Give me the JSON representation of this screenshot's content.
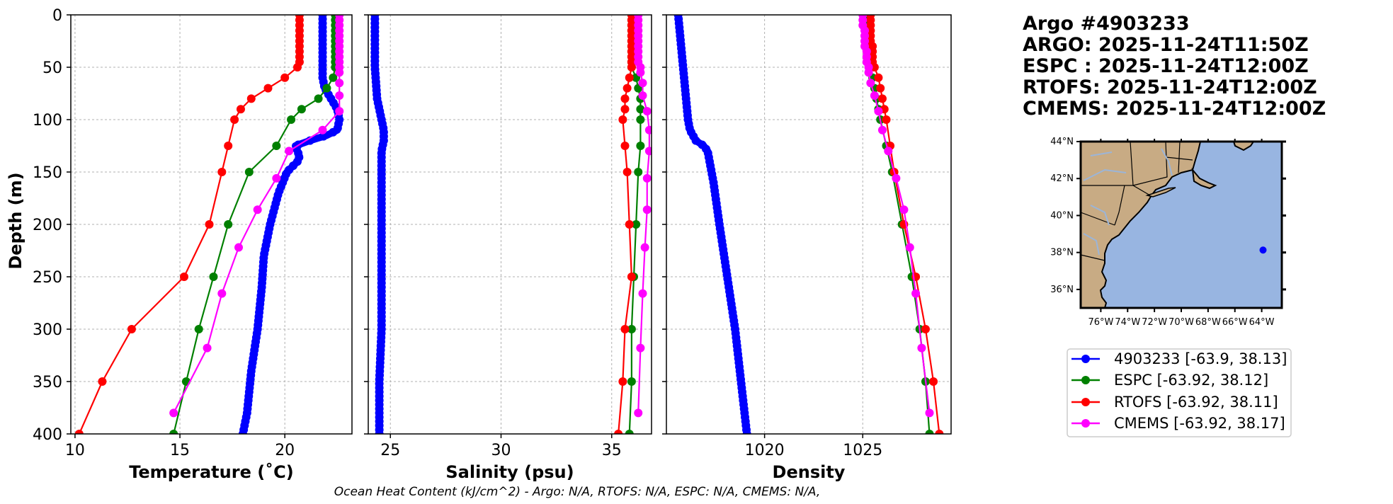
{
  "title_block": {
    "lines": [
      "Argo #4903233",
      "ARGO: 2025-11-24T11:50Z",
      "ESPC : 2025-11-24T12:00Z",
      "RTOFS: 2025-11-24T12:00Z",
      "CMEMS: 2025-11-24T12:00Z"
    ]
  },
  "footer": "Ocean Heat Content (kJ/cm^2) - Argo: N/A,  RTOFS: N/A,  ESPC: N/A,  CMEMS: N/A,",
  "colors": {
    "argo": "#0000ff",
    "espc": "#008000",
    "rtofs": "#ff0000",
    "cmems": "#ff00ff",
    "land": "#c8ab84",
    "ocean": "#98b5e1"
  },
  "legend": [
    {
      "label": "4903233 [-63.9, 38.13]",
      "color": "#0000ff"
    },
    {
      "label": "ESPC [-63.92, 38.12]",
      "color": "#008000"
    },
    {
      "label": "RTOFS [-63.92, 38.11]",
      "color": "#ff0000"
    },
    {
      "label": "CMEMS [-63.92, 38.17]",
      "color": "#ff00ff"
    }
  ],
  "map": {
    "lat_ticks": [
      "44°N",
      "42°N",
      "40°N",
      "38°N",
      "36°N"
    ],
    "lon_ticks": [
      "76°W",
      "74°W",
      "72°W",
      "70°W",
      "68°W",
      "66°W",
      "64°W"
    ],
    "float_lon": -63.9,
    "float_lat": 38.13
  },
  "chart_data": [
    {
      "type": "line",
      "title": "",
      "xlabel": "Temperature (˚C)",
      "ylabel": "Depth (m)",
      "xlim": [
        9.8,
        23.2
      ],
      "ylim": [
        400,
        0
      ],
      "xticks": [
        10,
        15,
        20
      ],
      "yticks": [
        0,
        50,
        100,
        150,
        200,
        250,
        300,
        350,
        400
      ],
      "grid": true,
      "series": [
        {
          "name": "4903233",
          "color": "#0000ff",
          "dense": true,
          "depth": [
            0,
            20,
            40,
            60,
            70,
            80,
            90,
            100,
            110,
            115,
            120,
            125,
            130,
            135,
            140,
            150,
            170,
            200,
            230,
            260,
            300,
            340,
            380,
            400
          ],
          "values": [
            21.8,
            21.8,
            21.8,
            21.8,
            21.9,
            22.2,
            22.5,
            22.6,
            22.5,
            22.0,
            21.2,
            20.5,
            20.6,
            20.7,
            20.6,
            20.1,
            19.7,
            19.3,
            19.0,
            18.9,
            18.7,
            18.4,
            18.2,
            18.0
          ]
        },
        {
          "name": "ESPC",
          "color": "#008000",
          "depth": [
            0,
            5,
            10,
            15,
            20,
            25,
            30,
            35,
            40,
            45,
            50,
            60,
            70,
            80,
            90,
            100,
            125,
            150,
            200,
            250,
            300,
            350,
            400
          ],
          "values": [
            22.4,
            22.4,
            22.4,
            22.4,
            22.4,
            22.4,
            22.4,
            22.4,
            22.4,
            22.4,
            22.4,
            22.3,
            22.0,
            21.6,
            20.8,
            20.3,
            19.6,
            18.3,
            17.3,
            16.6,
            15.9,
            15.3,
            14.7
          ]
        },
        {
          "name": "RTOFS",
          "color": "#ff0000",
          "depth": [
            0,
            5,
            10,
            15,
            20,
            25,
            30,
            35,
            40,
            45,
            50,
            60,
            70,
            80,
            90,
            100,
            125,
            150,
            200,
            250,
            300,
            350,
            400
          ],
          "values": [
            20.7,
            20.7,
            20.7,
            20.7,
            20.7,
            20.7,
            20.7,
            20.7,
            20.7,
            20.7,
            20.6,
            20.0,
            19.2,
            18.4,
            17.9,
            17.6,
            17.3,
            17.0,
            16.4,
            15.2,
            12.7,
            11.3,
            10.2
          ]
        },
        {
          "name": "CMEMS",
          "color": "#ff00ff",
          "depth": [
            0,
            5,
            10,
            15,
            20,
            25,
            30,
            35,
            40,
            45,
            50,
            55,
            65,
            77,
            92,
            110,
            130,
            156,
            186,
            222,
            266,
            318,
            380
          ],
          "values": [
            22.6,
            22.6,
            22.6,
            22.6,
            22.6,
            22.6,
            22.6,
            22.6,
            22.6,
            22.6,
            22.6,
            22.6,
            22.6,
            22.6,
            22.6,
            21.8,
            20.2,
            19.6,
            18.7,
            17.8,
            17.0,
            16.3,
            14.7
          ]
        }
      ]
    },
    {
      "type": "line",
      "title": "",
      "xlabel": "Salinity (psu)",
      "ylabel": "",
      "xlim": [
        24.0,
        36.8
      ],
      "ylim": [
        400,
        0
      ],
      "xticks": [
        25,
        30,
        35
      ],
      "yticks": [
        0,
        50,
        100,
        150,
        200,
        250,
        300,
        350,
        400
      ],
      "grid": true,
      "series": [
        {
          "name": "4903233",
          "color": "#0000ff",
          "dense": true,
          "depth": [
            0,
            20,
            50,
            80,
            90,
            100,
            110,
            120,
            130,
            150,
            200,
            250,
            300,
            350,
            400
          ],
          "values": [
            24.3,
            24.3,
            24.3,
            24.4,
            24.5,
            24.6,
            24.7,
            24.7,
            24.6,
            24.6,
            24.6,
            24.6,
            24.6,
            24.5,
            24.5
          ]
        },
        {
          "name": "ESPC",
          "color": "#008000",
          "depth": [
            0,
            5,
            10,
            15,
            20,
            25,
            30,
            35,
            40,
            45,
            50,
            60,
            70,
            80,
            90,
            100,
            125,
            150,
            200,
            250,
            300,
            350,
            400
          ],
          "values": [
            35.9,
            35.9,
            35.9,
            35.9,
            35.9,
            35.9,
            35.9,
            35.9,
            35.9,
            35.9,
            35.9,
            36.1,
            36.2,
            36.3,
            36.3,
            36.3,
            36.3,
            36.2,
            36.1,
            36.0,
            35.9,
            35.9,
            35.8
          ]
        },
        {
          "name": "RTOFS",
          "color": "#ff0000",
          "depth": [
            0,
            5,
            10,
            15,
            20,
            25,
            30,
            35,
            40,
            45,
            50,
            60,
            70,
            80,
            90,
            100,
            125,
            150,
            200,
            250,
            300,
            350,
            400
          ],
          "values": [
            35.9,
            35.9,
            35.9,
            35.9,
            35.9,
            35.9,
            35.9,
            35.9,
            35.9,
            35.9,
            35.9,
            35.8,
            35.7,
            35.6,
            35.6,
            35.5,
            35.6,
            35.7,
            35.8,
            35.9,
            35.6,
            35.5,
            35.3
          ]
        },
        {
          "name": "CMEMS",
          "color": "#ff00ff",
          "depth": [
            0,
            5,
            10,
            15,
            20,
            25,
            30,
            35,
            40,
            45,
            50,
            55,
            65,
            77,
            92,
            110,
            130,
            156,
            186,
            222,
            266,
            318,
            380
          ],
          "values": [
            36.2,
            36.2,
            36.2,
            36.2,
            36.2,
            36.2,
            36.2,
            36.2,
            36.2,
            36.2,
            36.3,
            36.3,
            36.4,
            36.4,
            36.6,
            36.7,
            36.7,
            36.6,
            36.6,
            36.5,
            36.4,
            36.3,
            36.2
          ]
        }
      ]
    },
    {
      "type": "line",
      "title": "",
      "xlabel": "Density",
      "ylabel": "",
      "xlim": [
        1015.0,
        1029.5
      ],
      "ylim": [
        400,
        0
      ],
      "xticks": [
        1020,
        1025
      ],
      "yticks": [
        0,
        50,
        100,
        150,
        200,
        250,
        300,
        350,
        400
      ],
      "grid": true,
      "series": [
        {
          "name": "4903233",
          "color": "#0000ff",
          "dense": true,
          "depth": [
            0,
            20,
            40,
            60,
            80,
            100,
            110,
            120,
            125,
            130,
            140,
            160,
            200,
            250,
            300,
            350,
            400
          ],
          "values": [
            1015.6,
            1015.7,
            1015.8,
            1015.9,
            1016.0,
            1016.1,
            1016.2,
            1016.5,
            1016.9,
            1017.1,
            1017.2,
            1017.4,
            1017.7,
            1018.1,
            1018.5,
            1018.8,
            1019.1
          ]
        },
        {
          "name": "ESPC",
          "color": "#008000",
          "depth": [
            0,
            5,
            10,
            15,
            20,
            25,
            30,
            35,
            40,
            45,
            50,
            60,
            70,
            80,
            90,
            100,
            125,
            150,
            200,
            250,
            300,
            350,
            400
          ],
          "values": [
            1025.3,
            1025.3,
            1025.3,
            1025.3,
            1025.3,
            1025.3,
            1025.4,
            1025.4,
            1025.4,
            1025.4,
            1025.4,
            1025.5,
            1025.6,
            1025.7,
            1025.8,
            1025.9,
            1026.2,
            1026.5,
            1027.0,
            1027.5,
            1027.9,
            1028.2,
            1028.4
          ]
        },
        {
          "name": "RTOFS",
          "color": "#ff0000",
          "depth": [
            0,
            5,
            10,
            15,
            20,
            25,
            30,
            35,
            40,
            45,
            50,
            60,
            70,
            80,
            90,
            100,
            125,
            150,
            200,
            250,
            300,
            350,
            400
          ],
          "values": [
            1025.4,
            1025.4,
            1025.4,
            1025.4,
            1025.4,
            1025.4,
            1025.5,
            1025.5,
            1025.5,
            1025.5,
            1025.6,
            1025.8,
            1025.9,
            1026.0,
            1026.1,
            1026.2,
            1026.4,
            1026.6,
            1027.1,
            1027.7,
            1028.2,
            1028.6,
            1028.9
          ]
        },
        {
          "name": "CMEMS",
          "color": "#ff00ff",
          "depth": [
            0,
            5,
            10,
            15,
            20,
            25,
            30,
            35,
            40,
            45,
            50,
            55,
            65,
            77,
            92,
            110,
            130,
            156,
            186,
            222,
            266,
            318,
            380
          ],
          "values": [
            1025.0,
            1025.0,
            1025.0,
            1025.1,
            1025.1,
            1025.1,
            1025.1,
            1025.2,
            1025.2,
            1025.2,
            1025.3,
            1025.3,
            1025.4,
            1025.6,
            1025.8,
            1026.0,
            1026.3,
            1026.7,
            1027.1,
            1027.4,
            1027.7,
            1028.0,
            1028.4
          ]
        }
      ]
    }
  ]
}
